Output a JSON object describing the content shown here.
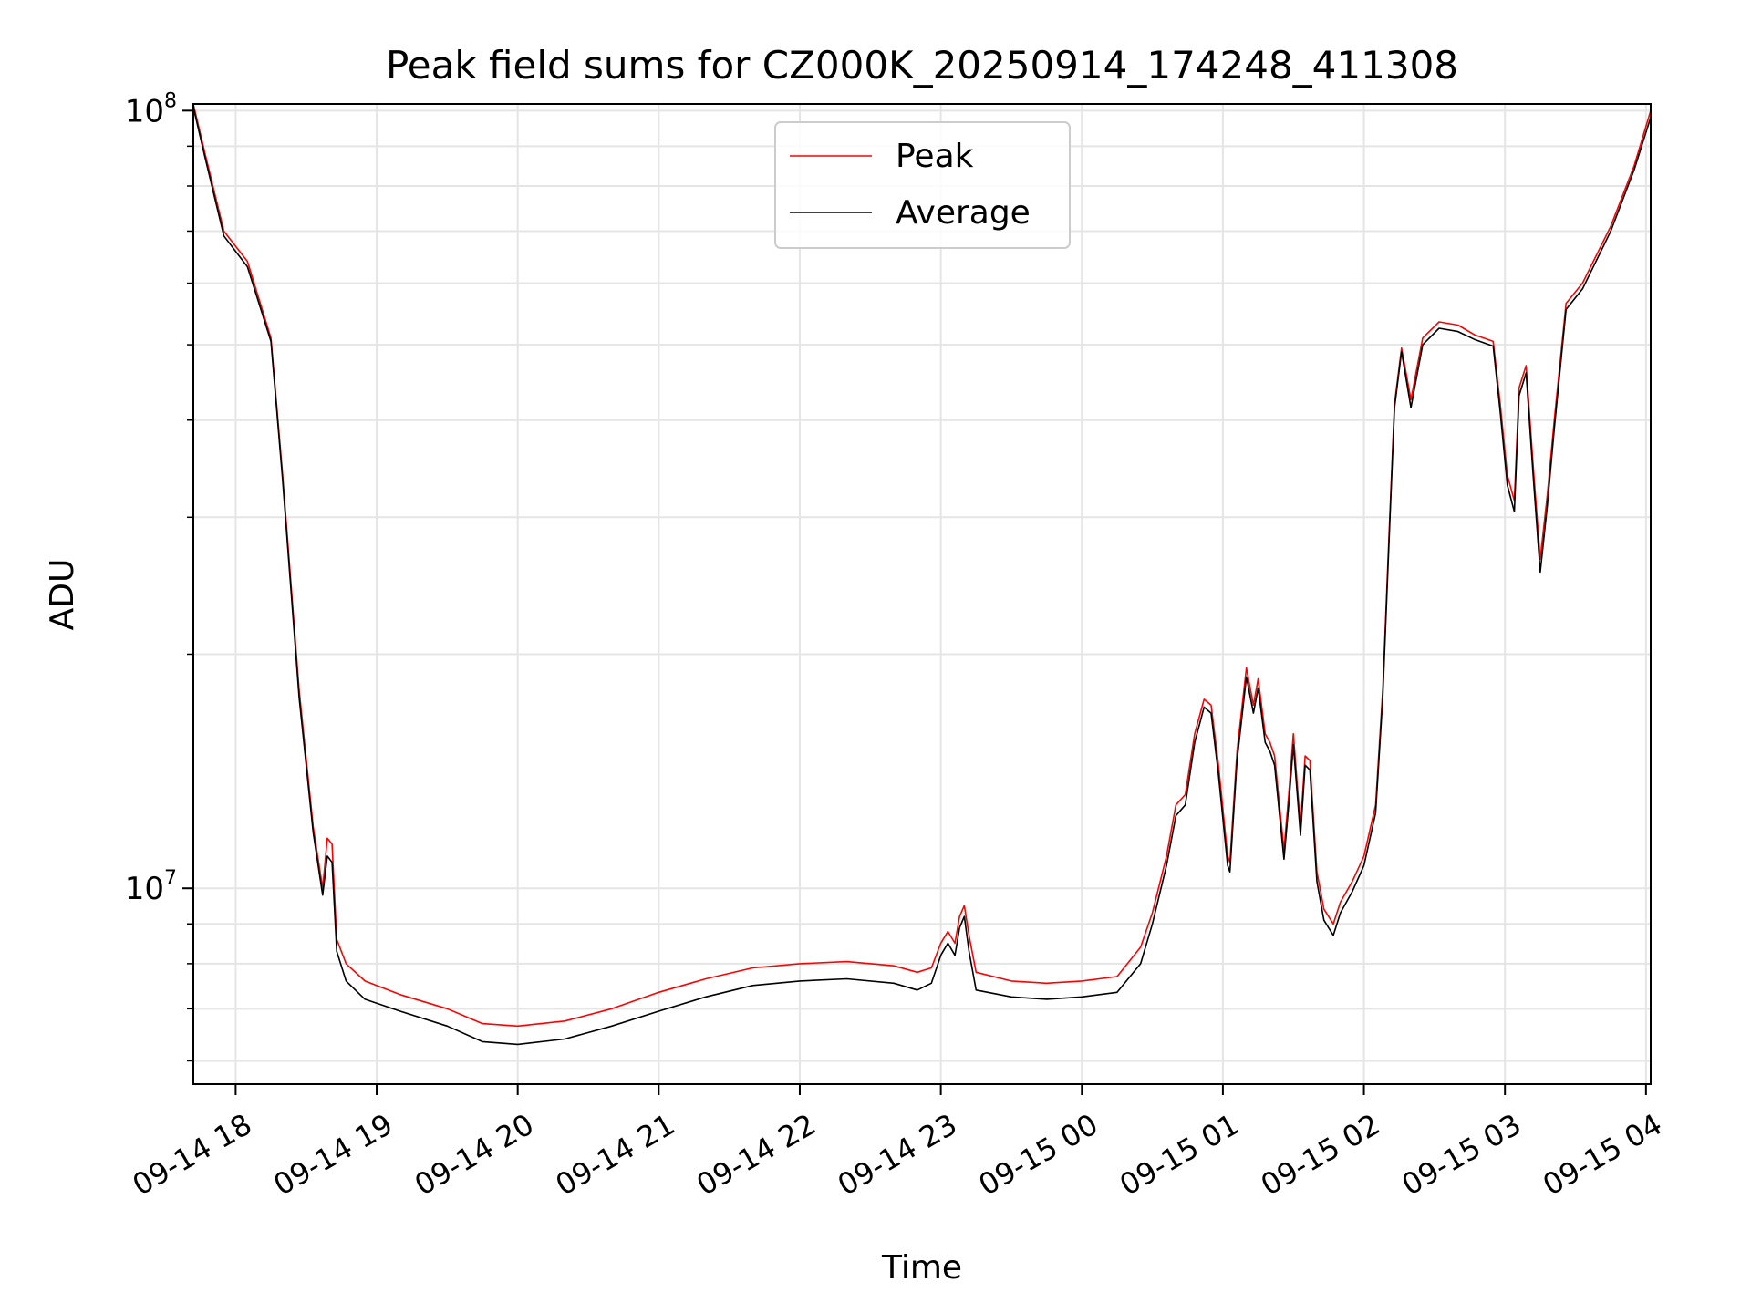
{
  "chart_data": {
    "type": "line",
    "title": "Peak field sums for CZ000K_20250914_174248_411308",
    "xlabel": "Time",
    "ylabel": "ADU",
    "y_scale": "log",
    "ylim": [
      5600000,
      102000000
    ],
    "xlim": [
      "2025-09-14 17:42",
      "2025-09-15 04:02"
    ],
    "x_ticks": [
      {
        "t": "2025-09-14 18:00",
        "label": "09-14 18"
      },
      {
        "t": "2025-09-14 19:00",
        "label": "09-14 19"
      },
      {
        "t": "2025-09-14 20:00",
        "label": "09-14 20"
      },
      {
        "t": "2025-09-14 21:00",
        "label": "09-14 21"
      },
      {
        "t": "2025-09-14 22:00",
        "label": "09-14 22"
      },
      {
        "t": "2025-09-14 23:00",
        "label": "09-14 23"
      },
      {
        "t": "2025-09-15 00:00",
        "label": "09-15 00"
      },
      {
        "t": "2025-09-15 01:00",
        "label": "09-15 01"
      },
      {
        "t": "2025-09-15 02:00",
        "label": "09-15 02"
      },
      {
        "t": "2025-09-15 03:00",
        "label": "09-15 03"
      },
      {
        "t": "2025-09-15 04:00",
        "label": "09-15 04"
      }
    ],
    "y_major_ticks": [
      {
        "v": 10000000,
        "base": "10",
        "exp": "7"
      },
      {
        "v": 100000000,
        "base": "10",
        "exp": "8"
      }
    ],
    "y_minor_ticks": [
      6000000,
      7000000,
      8000000,
      9000000,
      20000000,
      30000000,
      40000000,
      50000000,
      60000000,
      70000000,
      80000000,
      90000000
    ],
    "grid": true,
    "legend_position": "upper-center",
    "series": [
      {
        "name": "Peak",
        "color": "#ff0000",
        "points": [
          [
            "2025-09-14 17:42",
            102000000
          ],
          [
            "2025-09-14 17:47",
            88000000
          ],
          [
            "2025-09-14 17:55",
            70000000
          ],
          [
            "2025-09-14 18:05",
            64000000
          ],
          [
            "2025-09-14 18:15",
            51000000
          ],
          [
            "2025-09-14 18:20",
            34000000
          ],
          [
            "2025-09-14 18:27",
            18000000
          ],
          [
            "2025-09-14 18:33",
            12000000
          ],
          [
            "2025-09-14 18:37",
            10000000
          ],
          [
            "2025-09-14 18:39",
            11600000
          ],
          [
            "2025-09-14 18:41",
            11400000
          ],
          [
            "2025-09-14 18:43",
            8600000
          ],
          [
            "2025-09-14 18:47",
            8000000
          ],
          [
            "2025-09-14 18:55",
            7600000
          ],
          [
            "2025-09-14 19:10",
            7300000
          ],
          [
            "2025-09-14 19:30",
            7000000
          ],
          [
            "2025-09-14 19:45",
            6700000
          ],
          [
            "2025-09-14 20:00",
            6650000
          ],
          [
            "2025-09-14 20:20",
            6750000
          ],
          [
            "2025-09-14 20:40",
            7000000
          ],
          [
            "2025-09-14 21:00",
            7350000
          ],
          [
            "2025-09-14 21:20",
            7650000
          ],
          [
            "2025-09-14 21:40",
            7900000
          ],
          [
            "2025-09-14 22:00",
            8000000
          ],
          [
            "2025-09-14 22:20",
            8050000
          ],
          [
            "2025-09-14 22:40",
            7950000
          ],
          [
            "2025-09-14 22:50",
            7800000
          ],
          [
            "2025-09-14 22:56",
            7900000
          ],
          [
            "2025-09-14 23:00",
            8500000
          ],
          [
            "2025-09-14 23:03",
            8800000
          ],
          [
            "2025-09-14 23:06",
            8500000
          ],
          [
            "2025-09-14 23:08",
            9200000
          ],
          [
            "2025-09-14 23:10",
            9500000
          ],
          [
            "2025-09-14 23:12",
            8700000
          ],
          [
            "2025-09-14 23:15",
            7800000
          ],
          [
            "2025-09-14 23:30",
            7600000
          ],
          [
            "2025-09-14 23:45",
            7550000
          ],
          [
            "2025-09-15 00:00",
            7600000
          ],
          [
            "2025-09-15 00:15",
            7700000
          ],
          [
            "2025-09-15 00:25",
            8400000
          ],
          [
            "2025-09-15 00:30",
            9300000
          ],
          [
            "2025-09-15 00:36",
            11000000
          ],
          [
            "2025-09-15 00:40",
            12800000
          ],
          [
            "2025-09-15 00:44",
            13200000
          ],
          [
            "2025-09-15 00:48",
            15800000
          ],
          [
            "2025-09-15 00:52",
            17500000
          ],
          [
            "2025-09-15 00:55",
            17200000
          ],
          [
            "2025-09-15 00:58",
            14500000
          ],
          [
            "2025-09-15 01:02",
            11000000
          ],
          [
            "2025-09-15 01:03",
            10800000
          ],
          [
            "2025-09-15 01:06",
            15000000
          ],
          [
            "2025-09-15 01:10",
            19200000
          ],
          [
            "2025-09-15 01:13",
            17200000
          ],
          [
            "2025-09-15 01:15",
            18600000
          ],
          [
            "2025-09-15 01:18",
            15800000
          ],
          [
            "2025-09-15 01:20",
            15400000
          ],
          [
            "2025-09-15 01:22",
            14800000
          ],
          [
            "2025-09-15 01:26",
            11200000
          ],
          [
            "2025-09-15 01:28",
            13200000
          ],
          [
            "2025-09-15 01:30",
            15800000
          ],
          [
            "2025-09-15 01:33",
            12000000
          ],
          [
            "2025-09-15 01:35",
            14800000
          ],
          [
            "2025-09-15 01:37",
            14600000
          ],
          [
            "2025-09-15 01:40",
            10500000
          ],
          [
            "2025-09-15 01:43",
            9400000
          ],
          [
            "2025-09-15 01:47",
            9000000
          ],
          [
            "2025-09-15 01:50",
            9600000
          ],
          [
            "2025-09-15 01:55",
            10200000
          ],
          [
            "2025-09-15 02:00",
            11000000
          ],
          [
            "2025-09-15 02:05",
            12800000
          ],
          [
            "2025-09-15 02:08",
            18000000
          ],
          [
            "2025-09-15 02:11",
            30000000
          ],
          [
            "2025-09-15 02:13",
            42000000
          ],
          [
            "2025-09-15 02:16",
            49500000
          ],
          [
            "2025-09-15 02:20",
            42500000
          ],
          [
            "2025-09-15 02:25",
            51000000
          ],
          [
            "2025-09-15 02:32",
            53500000
          ],
          [
            "2025-09-15 02:40",
            53000000
          ],
          [
            "2025-09-15 02:47",
            51500000
          ],
          [
            "2025-09-15 02:55",
            50500000
          ],
          [
            "2025-09-15 02:58",
            42000000
          ],
          [
            "2025-09-15 03:01",
            34000000
          ],
          [
            "2025-09-15 03:04",
            31500000
          ],
          [
            "2025-09-15 03:06",
            44000000
          ],
          [
            "2025-09-15 03:09",
            47000000
          ],
          [
            "2025-09-15 03:12",
            35000000
          ],
          [
            "2025-09-15 03:15",
            26500000
          ],
          [
            "2025-09-15 03:18",
            32000000
          ],
          [
            "2025-09-15 03:21",
            40000000
          ],
          [
            "2025-09-15 03:26",
            56500000
          ],
          [
            "2025-09-15 03:33",
            60000000
          ],
          [
            "2025-09-15 03:45",
            71000000
          ],
          [
            "2025-09-15 03:55",
            85000000
          ],
          [
            "2025-09-15 04:02",
            100000000
          ]
        ]
      },
      {
        "name": "Average",
        "color": "#000000",
        "points": [
          [
            "2025-09-14 17:42",
            101000000
          ],
          [
            "2025-09-14 17:47",
            87000000
          ],
          [
            "2025-09-14 17:55",
            69000000
          ],
          [
            "2025-09-14 18:05",
            63000000
          ],
          [
            "2025-09-14 18:15",
            50500000
          ],
          [
            "2025-09-14 18:20",
            33500000
          ],
          [
            "2025-09-14 18:27",
            17600000
          ],
          [
            "2025-09-14 18:33",
            11800000
          ],
          [
            "2025-09-14 18:37",
            9800000
          ],
          [
            "2025-09-14 18:39",
            11000000
          ],
          [
            "2025-09-14 18:41",
            10800000
          ],
          [
            "2025-09-14 18:43",
            8300000
          ],
          [
            "2025-09-14 18:47",
            7600000
          ],
          [
            "2025-09-14 18:55",
            7200000
          ],
          [
            "2025-09-14 19:10",
            6950000
          ],
          [
            "2025-09-14 19:30",
            6650000
          ],
          [
            "2025-09-14 19:45",
            6350000
          ],
          [
            "2025-09-14 20:00",
            6300000
          ],
          [
            "2025-09-14 20:20",
            6400000
          ],
          [
            "2025-09-14 20:40",
            6650000
          ],
          [
            "2025-09-14 21:00",
            6950000
          ],
          [
            "2025-09-14 21:20",
            7250000
          ],
          [
            "2025-09-14 21:40",
            7500000
          ],
          [
            "2025-09-14 22:00",
            7600000
          ],
          [
            "2025-09-14 22:20",
            7650000
          ],
          [
            "2025-09-14 22:40",
            7550000
          ],
          [
            "2025-09-14 22:50",
            7400000
          ],
          [
            "2025-09-14 22:56",
            7550000
          ],
          [
            "2025-09-14 23:00",
            8200000
          ],
          [
            "2025-09-14 23:03",
            8500000
          ],
          [
            "2025-09-14 23:06",
            8200000
          ],
          [
            "2025-09-14 23:08",
            8900000
          ],
          [
            "2025-09-14 23:10",
            9200000
          ],
          [
            "2025-09-14 23:12",
            8300000
          ],
          [
            "2025-09-14 23:15",
            7400000
          ],
          [
            "2025-09-14 23:30",
            7250000
          ],
          [
            "2025-09-14 23:45",
            7200000
          ],
          [
            "2025-09-15 00:00",
            7250000
          ],
          [
            "2025-09-15 00:15",
            7350000
          ],
          [
            "2025-09-15 00:25",
            8000000
          ],
          [
            "2025-09-15 00:30",
            9000000
          ],
          [
            "2025-09-15 00:36",
            10700000
          ],
          [
            "2025-09-15 00:40",
            12400000
          ],
          [
            "2025-09-15 00:44",
            12800000
          ],
          [
            "2025-09-15 00:48",
            15400000
          ],
          [
            "2025-09-15 00:52",
            17100000
          ],
          [
            "2025-09-15 00:55",
            16800000
          ],
          [
            "2025-09-15 00:58",
            14100000
          ],
          [
            "2025-09-15 01:02",
            10700000
          ],
          [
            "2025-09-15 01:03",
            10500000
          ],
          [
            "2025-09-15 01:06",
            14600000
          ],
          [
            "2025-09-15 01:10",
            18700000
          ],
          [
            "2025-09-15 01:13",
            16800000
          ],
          [
            "2025-09-15 01:15",
            18100000
          ],
          [
            "2025-09-15 01:18",
            15400000
          ],
          [
            "2025-09-15 01:20",
            15000000
          ],
          [
            "2025-09-15 01:22",
            14400000
          ],
          [
            "2025-09-15 01:26",
            10900000
          ],
          [
            "2025-09-15 01:28",
            12800000
          ],
          [
            "2025-09-15 01:30",
            15300000
          ],
          [
            "2025-09-15 01:33",
            11700000
          ],
          [
            "2025-09-15 01:35",
            14400000
          ],
          [
            "2025-09-15 01:37",
            14200000
          ],
          [
            "2025-09-15 01:40",
            10200000
          ],
          [
            "2025-09-15 01:43",
            9100000
          ],
          [
            "2025-09-15 01:47",
            8700000
          ],
          [
            "2025-09-15 01:50",
            9300000
          ],
          [
            "2025-09-15 01:55",
            9900000
          ],
          [
            "2025-09-15 02:00",
            10700000
          ],
          [
            "2025-09-15 02:05",
            12500000
          ],
          [
            "2025-09-15 02:08",
            17600000
          ],
          [
            "2025-09-15 02:11",
            29500000
          ],
          [
            "2025-09-15 02:13",
            41500000
          ],
          [
            "2025-09-15 02:16",
            49000000
          ],
          [
            "2025-09-15 02:20",
            41500000
          ],
          [
            "2025-09-15 02:25",
            50000000
          ],
          [
            "2025-09-15 02:32",
            52500000
          ],
          [
            "2025-09-15 02:40",
            52000000
          ],
          [
            "2025-09-15 02:47",
            50800000
          ],
          [
            "2025-09-15 02:55",
            49800000
          ],
          [
            "2025-09-15 02:58",
            41000000
          ],
          [
            "2025-09-15 03:01",
            33000000
          ],
          [
            "2025-09-15 03:04",
            30500000
          ],
          [
            "2025-09-15 03:06",
            43000000
          ],
          [
            "2025-09-15 03:09",
            46000000
          ],
          [
            "2025-09-15 03:12",
            34000000
          ],
          [
            "2025-09-15 03:15",
            25500000
          ],
          [
            "2025-09-15 03:18",
            31000000
          ],
          [
            "2025-09-15 03:21",
            39000000
          ],
          [
            "2025-09-15 03:26",
            55500000
          ],
          [
            "2025-09-15 03:33",
            59000000
          ],
          [
            "2025-09-15 03:45",
            70000000
          ],
          [
            "2025-09-15 03:55",
            84000000
          ],
          [
            "2025-09-15 04:02",
            98000000
          ]
        ]
      }
    ]
  }
}
